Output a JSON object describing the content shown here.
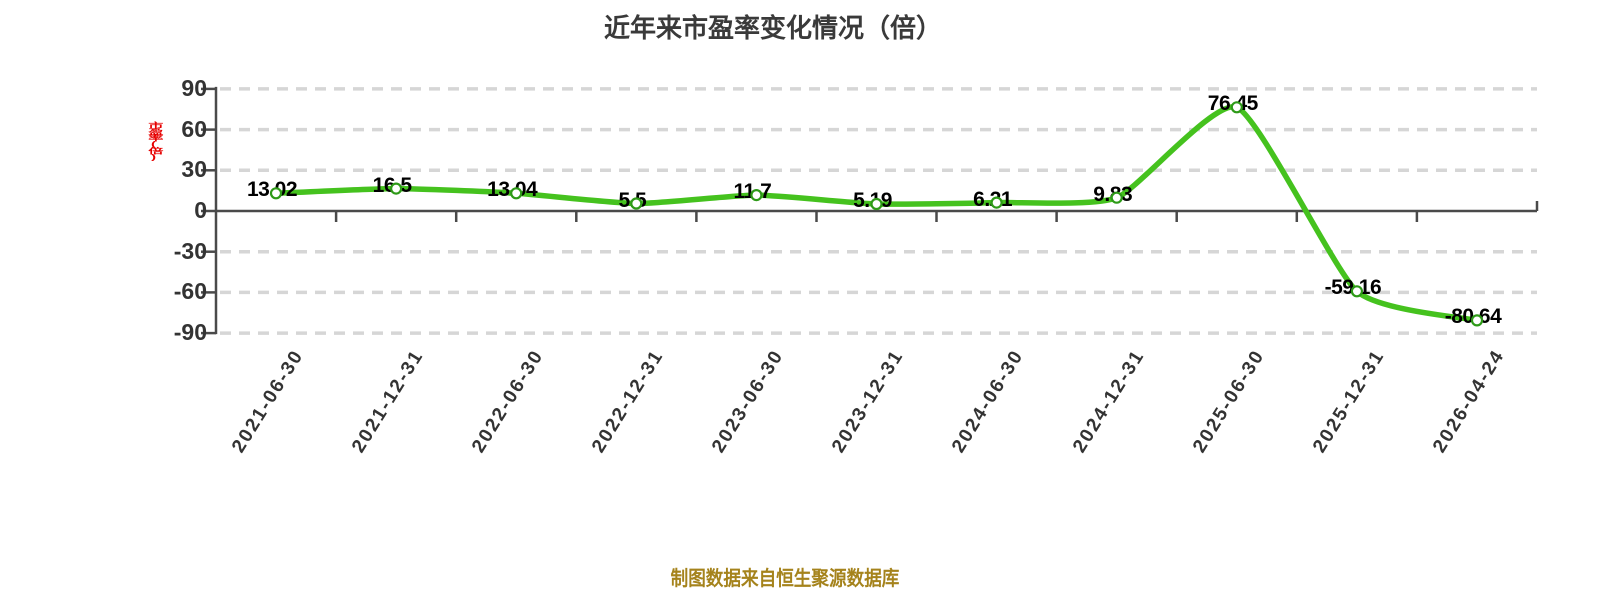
{
  "chart_data": {
    "type": "line",
    "title": "近年来市盈率变化情况（倍）",
    "y_axis_label": "市盈率(倍)",
    "footer": "制图数据来自恒生聚源数据库",
    "categories": [
      "2021-06-30",
      "2021-12-31",
      "2022-06-30",
      "2022-12-31",
      "2023-06-30",
      "2023-12-31",
      "2024-06-30",
      "2024-12-31",
      "2025-06-30",
      "2025-12-31",
      "2026-04-24"
    ],
    "values": [
      13.02,
      16.5,
      13.04,
      5.5,
      11.7,
      5.19,
      6.21,
      9.83,
      76.45,
      -59.16,
      -80.64
    ],
    "point_labels": [
      "13.02",
      "16.5",
      "13.04",
      "5.5",
      "11.7",
      "5.19",
      "6.21",
      "9.83",
      "76.45",
      "-59.16",
      "-80.64"
    ],
    "y_ticks": [
      90,
      60,
      30,
      0,
      -30,
      -60,
      -90
    ],
    "ylim": [
      -90,
      90
    ],
    "grid": "dashed-horizontal",
    "legend": "none",
    "colors": {
      "line": "#45c21e",
      "point_fill": "#ffffff",
      "point_ring": "#2e9a18",
      "grid": "#d6d6d6",
      "axis": "#4a4a4a",
      "title_text": "#3a3a3a",
      "tick_text": "#333333",
      "data_label_text": "#000000",
      "y_axis_label_text": "#e60000",
      "footer_text": "#a5831c"
    }
  }
}
